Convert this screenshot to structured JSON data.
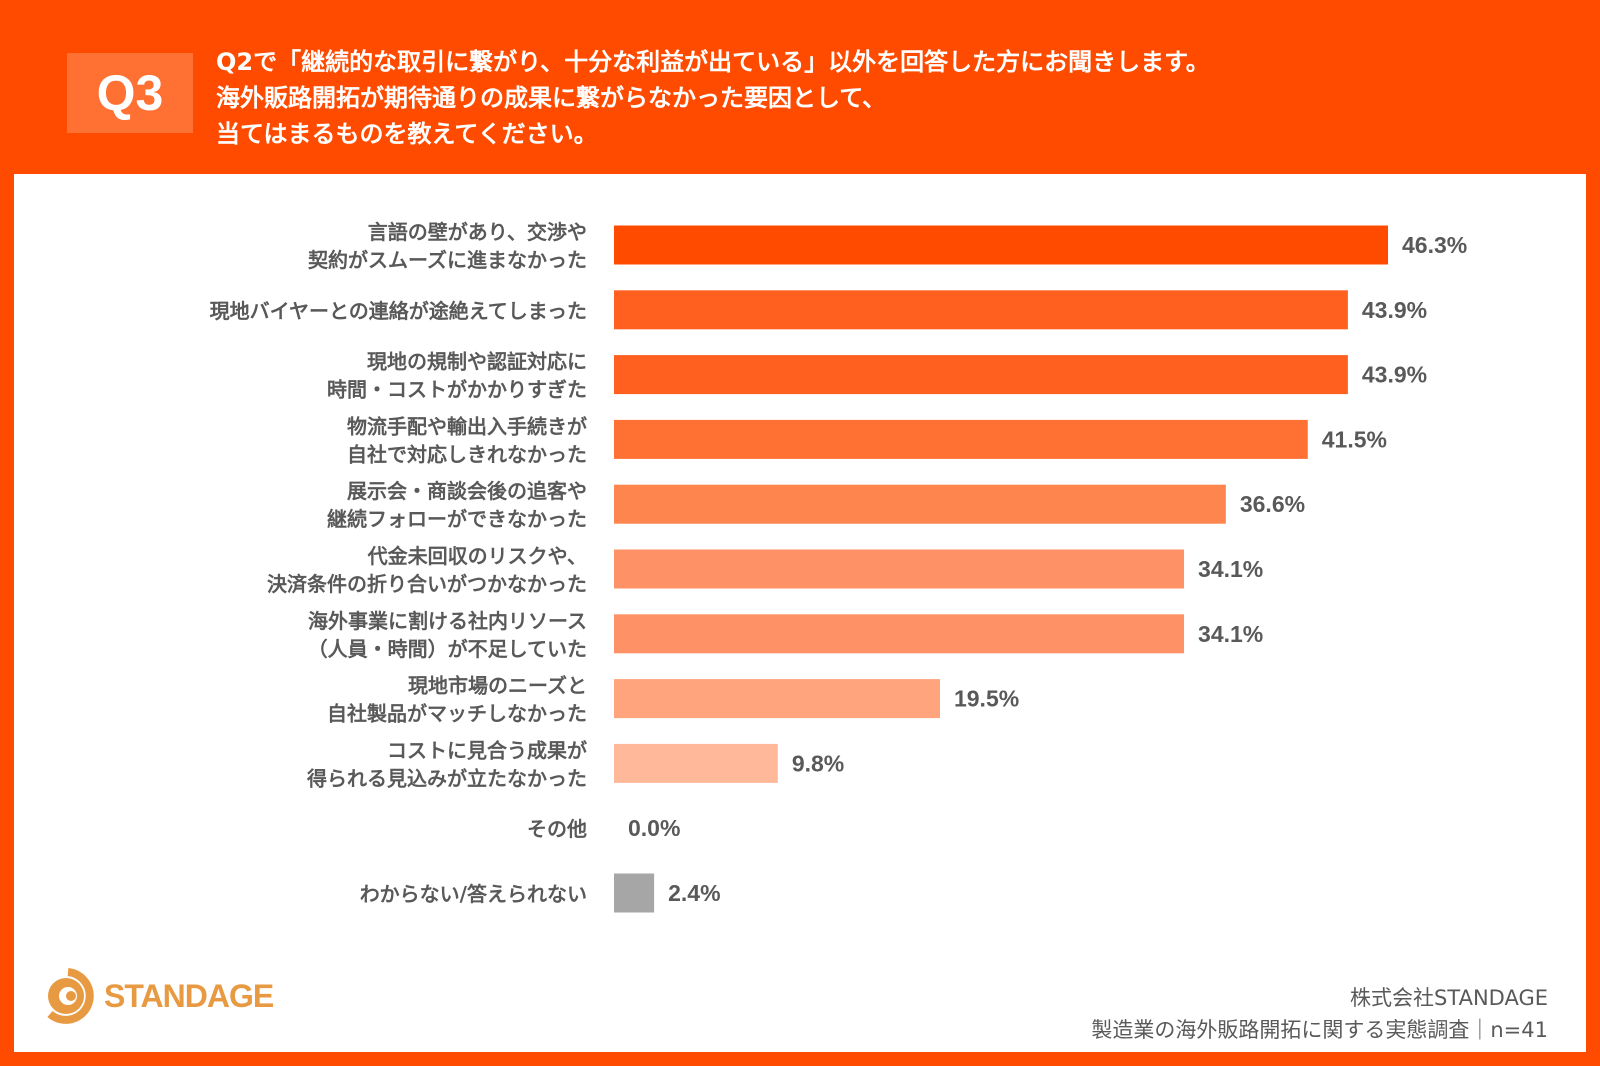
{
  "header": {
    "question_number": "Q3",
    "question_lines": [
      "Q2で「継続的な取引に繋がり、十分な利益が出ている」以外を回答した方にお聞きします。",
      "海外販路開拓が期待通りの成果に繋がらなかった要因として、",
      "当てはまるものを教えてください。"
    ]
  },
  "chart_data": {
    "type": "bar",
    "orientation": "horizontal",
    "categories": [
      [
        "言語の壁があり、交渉や",
        "契約がスムーズに進まなかった"
      ],
      [
        "現地バイヤーとの連絡が途絶えてしまった"
      ],
      [
        "現地の規制や認証対応に",
        "時間・コストがかかりすぎた"
      ],
      [
        "物流手配や輸出入手続きが",
        "自社で対応しきれなかった"
      ],
      [
        "展示会・商談会後の追客や",
        "継続フォローができなかった"
      ],
      [
        "代金未回収のリスクや、",
        "決済条件の折り合いがつかなかった"
      ],
      [
        "海外事業に割ける社内リソース",
        "（人員・時間）が不足していた"
      ],
      [
        "現地市場のニーズと",
        "自社製品がマッチしなかった"
      ],
      [
        "コストに見合う成果が",
        "得られる見込みが立たなかった"
      ],
      [
        "その他"
      ],
      [
        "わからない/答えられない"
      ]
    ],
    "values": [
      46.3,
      43.9,
      43.9,
      41.5,
      36.6,
      34.1,
      34.1,
      19.5,
      9.8,
      0.0,
      2.4
    ],
    "value_labels": [
      "46.3%",
      "43.9%",
      "43.9%",
      "41.5%",
      "36.6%",
      "34.1%",
      "34.1%",
      "19.5%",
      "9.8%",
      "0.0%",
      "2.4%"
    ],
    "colors": [
      "#FF4B00",
      "#FF5F1F",
      "#FF5F1F",
      "#FF7033",
      "#FF854F",
      "#FF9166",
      "#FF9166",
      "#FFA47D",
      "#FFB899",
      "#FFB899",
      "#A6A6A6"
    ],
    "xlim": [
      0,
      50
    ],
    "grid": false
  },
  "footer": {
    "logo_text": "STANDAGE",
    "company": "株式会社STANDAGE",
    "survey": "製造業の海外販路開拓に関する実態調査｜n=41"
  },
  "colors": {
    "brand": "#FF4B00",
    "logo": "#E89A42",
    "text": "#595959"
  }
}
